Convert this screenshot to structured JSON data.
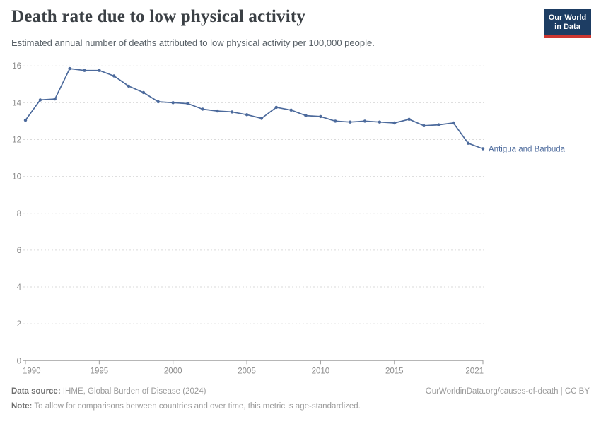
{
  "header": {
    "title": "Death rate due to low physical activity",
    "subtitle": "Estimated annual number of deaths attributed to low physical activity per 100,000 people.",
    "logo": {
      "line1": "Our World",
      "line2": "in Data"
    }
  },
  "chart_data": {
    "type": "line",
    "title": "Death rate due to low physical activity",
    "x": [
      1990,
      1991,
      1992,
      1993,
      1994,
      1995,
      1996,
      1997,
      1998,
      1999,
      2000,
      2001,
      2002,
      2003,
      2004,
      2005,
      2006,
      2007,
      2008,
      2009,
      2010,
      2011,
      2012,
      2013,
      2014,
      2015,
      2016,
      2017,
      2018,
      2019,
      2020,
      2021
    ],
    "series": [
      {
        "name": "Antigua and Barbuda",
        "color": "#4c6a9c",
        "values": [
          13.05,
          14.15,
          14.2,
          15.85,
          15.75,
          15.75,
          15.45,
          14.9,
          14.55,
          14.05,
          14.0,
          13.95,
          13.65,
          13.55,
          13.5,
          13.35,
          13.15,
          13.75,
          13.6,
          13.3,
          13.25,
          13.0,
          12.95,
          13.0,
          12.95,
          12.9,
          13.1,
          12.75,
          12.8,
          12.9,
          11.8,
          11.5
        ]
      }
    ],
    "xlabel": "",
    "ylabel": "",
    "ylim": [
      0,
      16
    ],
    "xlim": [
      1990,
      2021
    ],
    "yticks": [
      0,
      2,
      4,
      6,
      8,
      10,
      12,
      14,
      16
    ],
    "xticks": [
      1990,
      1995,
      2000,
      2005,
      2010,
      2015,
      2021
    ],
    "grid": "horizontal-dashed",
    "legend": "end-of-line-label",
    "markers": true
  },
  "colors": {
    "line": "#4c6a9c",
    "entity_label": "#4c6a9c",
    "title_text": "#3b4045",
    "subtitle_text": "#575f66",
    "axis_text": "#8c8c8c",
    "gridline": "#dadada",
    "axis_line": "#9e9e9e",
    "logo_bg": "#1d3d63",
    "logo_bar": "#cd3731",
    "footer_text": "#9a9a9a"
  },
  "footer": {
    "source_label": "Data source:",
    "source_text": " IHME, Global Burden of Disease (2024)",
    "link": "OurWorldinData.org/causes-of-death | CC BY",
    "note_label": "Note:",
    "note_text": " To allow for comparisons between countries and over time, this metric is age-standardized."
  }
}
